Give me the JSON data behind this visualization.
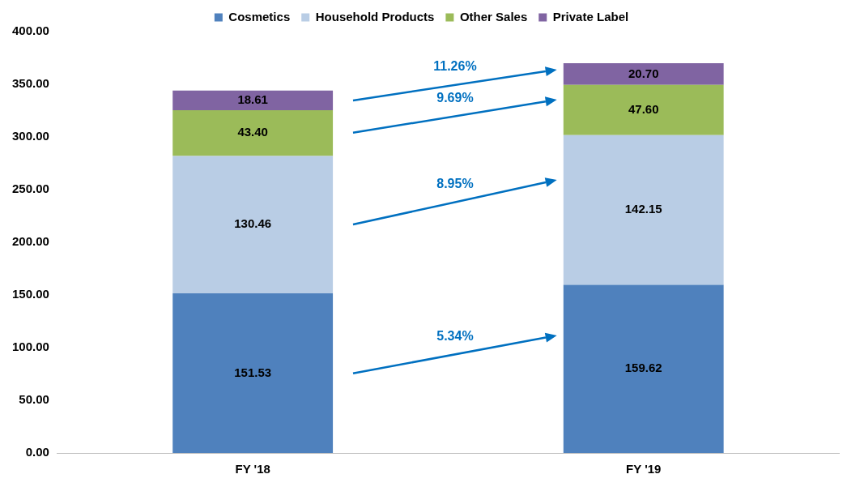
{
  "chart_data": {
    "type": "bar",
    "stacked": true,
    "categories": [
      "FY '18",
      "FY '19"
    ],
    "series": [
      {
        "name": "Cosmetics",
        "color": "#4f81bd",
        "values": [
          151.53,
          159.62
        ],
        "value_labels": [
          "151.53",
          "159.62"
        ]
      },
      {
        "name": "Household Products",
        "color": "#b9cde5",
        "values": [
          130.46,
          142.15
        ],
        "value_labels": [
          "130.46",
          "142.15"
        ]
      },
      {
        "name": "Other Sales",
        "color": "#9bbb59",
        "values": [
          43.4,
          47.6
        ],
        "value_labels": [
          "43.40",
          "47.60"
        ]
      },
      {
        "name": "Private Label",
        "color": "#8064a2",
        "values": [
          18.61,
          20.7
        ],
        "value_labels": [
          "18.61",
          "20.70"
        ]
      }
    ],
    "ylim": [
      0,
      400
    ],
    "yticks": [
      {
        "value": 0,
        "label": "0.00"
      },
      {
        "value": 50,
        "label": "50.00"
      },
      {
        "value": 100,
        "label": "100.00"
      },
      {
        "value": 150,
        "label": "150.00"
      },
      {
        "value": 200,
        "label": "200.00"
      },
      {
        "value": 250,
        "label": "250.00"
      },
      {
        "value": 300,
        "label": "300.00"
      },
      {
        "value": 350,
        "label": "350.00"
      },
      {
        "value": 400,
        "label": "400.00"
      }
    ],
    "grid": false,
    "legend": "top",
    "annotations": [
      "5.34%",
      "8.95%",
      "9.69%",
      "11.26%"
    ]
  }
}
